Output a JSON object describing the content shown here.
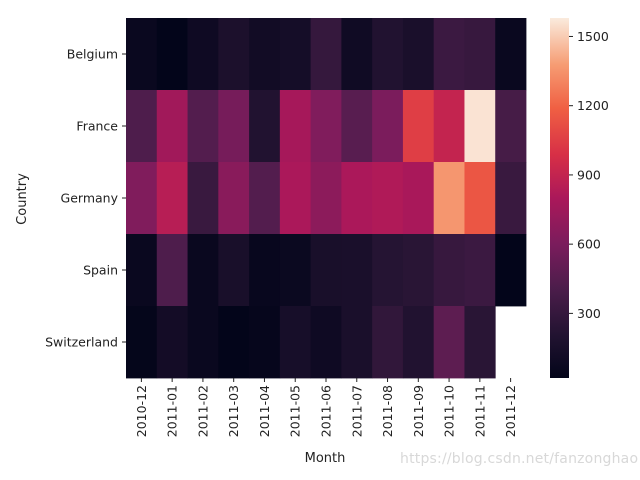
{
  "chart_data": {
    "type": "heatmap",
    "title": "",
    "xlabel": "Month",
    "ylabel": "Country",
    "x": [
      "2010-12",
      "2011-01",
      "2011-02",
      "2011-03",
      "2011-04",
      "2011-05",
      "2011-06",
      "2011-07",
      "2011-08",
      "2011-09",
      "2011-10",
      "2011-11",
      "2011-12"
    ],
    "y": [
      "Belgium",
      "France",
      "Germany",
      "Spain",
      "Switzerland"
    ],
    "values": [
      [
        60,
        20,
        90,
        170,
        110,
        130,
        300,
        100,
        200,
        160,
        330,
        310,
        60
      ],
      [
        420,
        760,
        440,
        580,
        200,
        780,
        620,
        460,
        600,
        1050,
        900,
        1560,
        380
      ],
      [
        620,
        850,
        320,
        660,
        440,
        800,
        670,
        800,
        820,
        790,
        1360,
        1150,
        320
      ],
      [
        60,
        420,
        60,
        150,
        50,
        70,
        150,
        160,
        220,
        240,
        310,
        330,
        20
      ],
      [
        30,
        120,
        60,
        20,
        40,
        140,
        90,
        160,
        280,
        200,
        480,
        240,
        null
      ]
    ],
    "colorbar": {
      "min": 20,
      "max": 1580,
      "ticks": [
        300,
        600,
        900,
        1200,
        1500
      ]
    },
    "colormap": "rocket",
    "grid": false,
    "legend": "colorbar-right"
  },
  "watermark": "https://blog.csdn.net/fanzonghao"
}
